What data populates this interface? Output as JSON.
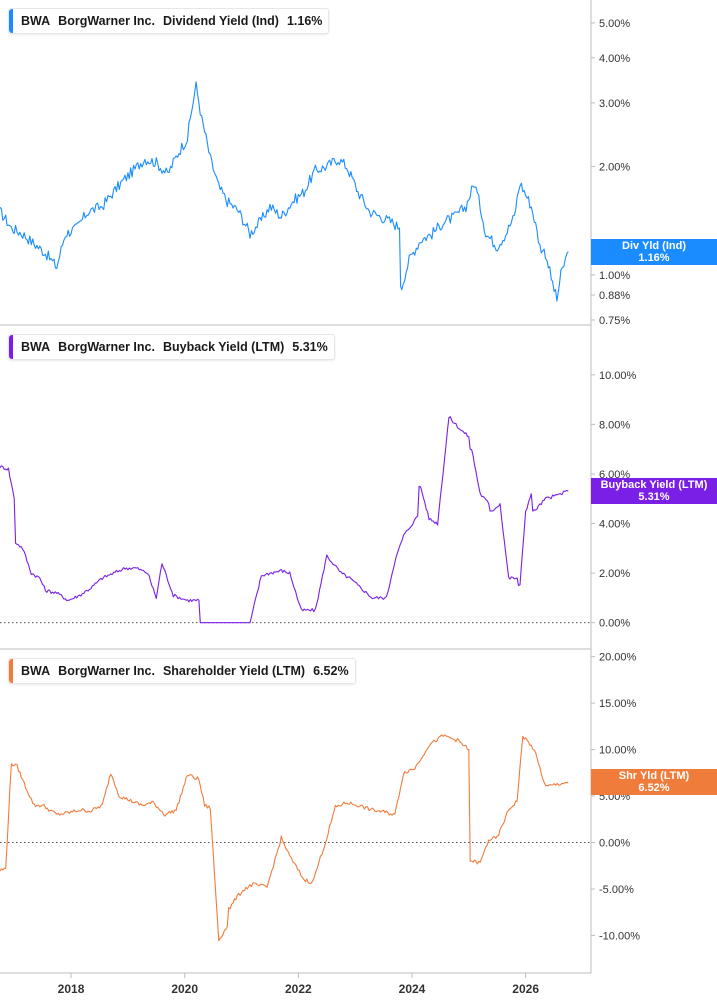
{
  "ticker": "BWA",
  "company": "BorgWarner Inc.",
  "x_axis": {
    "labels": [
      "2018",
      "2020",
      "2022",
      "2024",
      "2026"
    ],
    "range": [
      2016.75,
      2027.15
    ]
  },
  "chart_data": [
    {
      "type": "line",
      "metric": "Dividend Yield (Ind)",
      "current_value_label": "1.16%",
      "flag_label": "Div Yld (Ind)",
      "color": "#1a8cff",
      "y_scale": "log",
      "ylim": [
        0.75,
        5.5
      ],
      "y_tick_labels": [
        "5.00%",
        "4.00%",
        "3.00%",
        "2.00%",
        "1.00%",
        "0.88%",
        "0.75%"
      ],
      "y_tick_values": [
        5.0,
        4.0,
        3.0,
        2.0,
        1.0,
        0.88,
        0.75
      ],
      "x": [
        2016.75,
        2016.95,
        2017.15,
        2017.35,
        2017.55,
        2017.75,
        2017.9,
        2018.1,
        2018.3,
        2018.55,
        2018.75,
        2018.95,
        2019.1,
        2019.3,
        2019.5,
        2019.7,
        2019.9,
        2020.05,
        2020.2,
        2020.3,
        2020.45,
        2020.6,
        2020.75,
        2020.95,
        2021.15,
        2021.35,
        2021.5,
        2021.7,
        2021.9,
        2022.1,
        2022.3,
        2022.5,
        2022.7,
        2022.85,
        2023.05,
        2023.25,
        2023.45,
        2023.65,
        2023.78,
        2023.82,
        2023.95,
        2024.15,
        2024.35,
        2024.55,
        2024.75,
        2024.95,
        2025.1,
        2025.3,
        2025.5,
        2025.65,
        2025.8,
        2025.9,
        2026.1,
        2026.25,
        2026.35,
        2026.45,
        2026.55,
        2026.62,
        2026.75
      ],
      "values": [
        1.5,
        1.35,
        1.3,
        1.22,
        1.15,
        1.05,
        1.3,
        1.35,
        1.5,
        1.55,
        1.7,
        1.85,
        1.95,
        2.1,
        2.05,
        1.9,
        2.2,
        2.4,
        3.35,
        2.7,
        2.1,
        1.75,
        1.6,
        1.5,
        1.3,
        1.42,
        1.55,
        1.45,
        1.6,
        1.7,
        1.95,
        2.0,
        2.1,
        2.0,
        1.7,
        1.5,
        1.45,
        1.4,
        1.35,
        0.93,
        1.1,
        1.25,
        1.3,
        1.4,
        1.45,
        1.55,
        1.8,
        1.3,
        1.2,
        1.3,
        1.45,
        1.8,
        1.55,
        1.2,
        1.15,
        0.98,
        0.85,
        1.0,
        1.16
      ]
    },
    {
      "type": "line",
      "metric": "Buyback Yield (LTM)",
      "current_value_label": "5.31%",
      "flag_label": "Buyback Yield (LTM)",
      "color": "#7a1fe6",
      "y_scale": "linear",
      "ylim": [
        -0.7,
        10.8
      ],
      "y_tick_labels": [
        "10.00%",
        "8.00%",
        "6.00%",
        "4.00%",
        "2.00%",
        "0.00%"
      ],
      "y_tick_values": [
        10,
        8,
        6,
        4,
        2,
        0
      ],
      "x": [
        2016.75,
        2016.9,
        2017.0,
        2017.05,
        2017.15,
        2017.3,
        2017.45,
        2017.55,
        2017.75,
        2017.95,
        2018.15,
        2018.35,
        2018.55,
        2018.75,
        2018.95,
        2019.15,
        2019.35,
        2019.5,
        2019.6,
        2019.8,
        2020.05,
        2020.15,
        2020.25,
        2020.3,
        2020.45,
        2020.7,
        2020.85,
        2021.0,
        2021.15,
        2021.35,
        2021.5,
        2021.7,
        2021.85,
        2022.05,
        2022.3,
        2022.5,
        2022.75,
        2022.9,
        2023.05,
        2023.3,
        2023.55,
        2023.7,
        2023.85,
        2024.1,
        2024.15,
        2024.3,
        2024.45,
        2024.65,
        2024.85,
        2025.0,
        2025.05,
        2025.2,
        2025.35,
        2025.4,
        2025.55,
        2025.7,
        2025.85,
        2025.9,
        2026.0,
        2026.1,
        2026.15,
        2026.35,
        2026.5,
        2026.75
      ],
      "values": [
        6.3,
        6.2,
        5.0,
        3.2,
        3.0,
        2.0,
        1.8,
        1.3,
        1.2,
        0.9,
        1.1,
        1.4,
        1.8,
        2.0,
        2.2,
        2.2,
        2.0,
        1.0,
        2.4,
        1.1,
        0.9,
        0.9,
        0.9,
        0.0,
        0.0,
        0.0,
        0.0,
        0.0,
        0.0,
        1.9,
        2.0,
        2.1,
        2.0,
        0.5,
        0.5,
        2.7,
        2.0,
        1.8,
        1.5,
        1.0,
        1.0,
        2.5,
        3.5,
        4.3,
        5.5,
        4.2,
        4.0,
        8.3,
        7.8,
        7.5,
        7.0,
        5.2,
        4.8,
        4.5,
        4.8,
        1.8,
        1.8,
        1.5,
        4.5,
        5.2,
        4.5,
        5.0,
        5.1,
        5.31
      ]
    },
    {
      "type": "line",
      "metric": "Shareholder Yield (LTM)",
      "current_value_label": "6.52%",
      "flag_label": "Shr Yld (LTM)",
      "color": "#f07c3c",
      "y_scale": "linear",
      "ylim": [
        -13.5,
        20.5
      ],
      "y_tick_labels": [
        "20.00%",
        "15.00%",
        "10.00%",
        "5.00%",
        "0.00%",
        "-5.00%",
        "-10.00%"
      ],
      "y_tick_values": [
        20,
        15,
        10,
        5,
        0,
        -5,
        -10
      ],
      "x": [
        2016.75,
        2016.85,
        2016.95,
        2017.05,
        2017.2,
        2017.35,
        2017.5,
        2017.75,
        2017.95,
        2018.15,
        2018.35,
        2018.55,
        2018.7,
        2018.85,
        2019.05,
        2019.25,
        2019.45,
        2019.65,
        2019.85,
        2020.05,
        2020.25,
        2020.35,
        2020.45,
        2020.6,
        2020.75,
        2020.8,
        2020.9,
        2021.05,
        2021.2,
        2021.45,
        2021.7,
        2021.85,
        2022.1,
        2022.25,
        2022.5,
        2022.65,
        2022.85,
        2023.05,
        2023.3,
        2023.5,
        2023.7,
        2023.85,
        2024.05,
        2024.3,
        2024.55,
        2024.8,
        2025.0,
        2025.05,
        2025.2,
        2025.35,
        2025.5,
        2025.7,
        2025.85,
        2025.95,
        2026.15,
        2026.35,
        2026.5,
        2026.75
      ],
      "values": [
        -3.0,
        -2.8,
        8.5,
        8.2,
        6.0,
        4.0,
        4.0,
        3.0,
        3.2,
        3.5,
        3.4,
        4.0,
        7.5,
        5.0,
        4.5,
        4.0,
        4.3,
        3.0,
        3.5,
        7.3,
        6.8,
        4.0,
        3.7,
        -10.5,
        -9.0,
        -7.0,
        -6.0,
        -5.0,
        -4.5,
        -4.8,
        0.5,
        -1.5,
        -4.0,
        -4.3,
        0.5,
        3.8,
        4.3,
        4.0,
        3.5,
        3.3,
        3.0,
        7.5,
        8.0,
        10.5,
        11.5,
        11.0,
        10.0,
        -2.0,
        -2.2,
        0.3,
        0.5,
        3.5,
        4.5,
        11.5,
        10.0,
        6.0,
        6.2,
        6.52
      ]
    }
  ]
}
